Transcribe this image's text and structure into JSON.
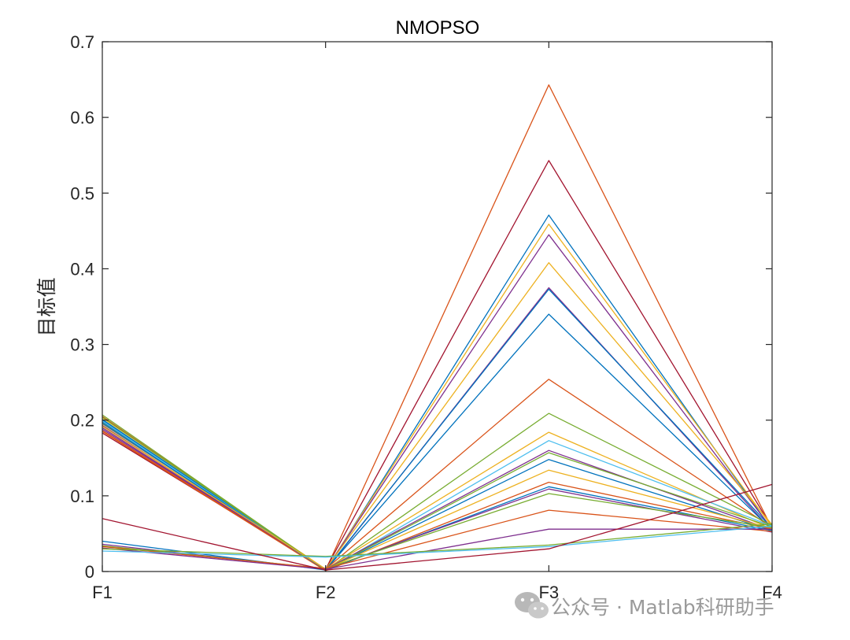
{
  "chart_data": {
    "type": "line",
    "title": "NMOPSO",
    "xlabel": "",
    "ylabel": "目标值",
    "categories": [
      "F1",
      "F2",
      "F3",
      "F4"
    ],
    "ylim": [
      0,
      0.7
    ],
    "yticks": [
      0,
      0.1,
      0.2,
      0.3,
      0.4,
      0.5,
      0.6,
      0.7
    ],
    "ytick_labels": [
      "0",
      "0.1",
      "0.2",
      "0.3",
      "0.4",
      "0.5",
      "0.6",
      "0.7"
    ],
    "grid": false,
    "box": true,
    "series": [
      {
        "color": "#D95319",
        "values": [
          0.205,
          0.002,
          0.643,
          0.057
        ]
      },
      {
        "color": "#A2142F",
        "values": [
          0.183,
          0.003,
          0.543,
          0.058
        ]
      },
      {
        "color": "#0072BD",
        "values": [
          0.2,
          0.001,
          0.471,
          0.055
        ]
      },
      {
        "color": "#EDB120",
        "values": [
          0.197,
          0.002,
          0.459,
          0.059
        ]
      },
      {
        "color": "#7E2F8E",
        "values": [
          0.19,
          0.002,
          0.445,
          0.056
        ]
      },
      {
        "color": "#EDB120",
        "values": [
          0.203,
          0.003,
          0.408,
          0.062
        ]
      },
      {
        "color": "#7E2F8E",
        "values": [
          0.193,
          0.001,
          0.375,
          0.054
        ]
      },
      {
        "color": "#0072BD",
        "values": [
          0.198,
          0.002,
          0.373,
          0.057
        ]
      },
      {
        "color": "#0072BD",
        "values": [
          0.201,
          0.002,
          0.34,
          0.055
        ]
      },
      {
        "color": "#D95319",
        "values": [
          0.186,
          0.003,
          0.254,
          0.058
        ]
      },
      {
        "color": "#77AC30",
        "values": [
          0.207,
          0.002,
          0.209,
          0.061
        ]
      },
      {
        "color": "#EDB120",
        "values": [
          0.195,
          0.003,
          0.184,
          0.056
        ]
      },
      {
        "color": "#4DBEEE",
        "values": [
          0.199,
          0.001,
          0.173,
          0.06
        ]
      },
      {
        "color": "#7E2F8E",
        "values": [
          0.188,
          0.003,
          0.16,
          0.055
        ]
      },
      {
        "color": "#77AC30",
        "values": [
          0.204,
          0.002,
          0.157,
          0.059
        ]
      },
      {
        "color": "#0072BD",
        "values": [
          0.196,
          0.002,
          0.148,
          0.054
        ]
      },
      {
        "color": "#EDB120",
        "values": [
          0.192,
          0.003,
          0.134,
          0.057
        ]
      },
      {
        "color": "#D95319",
        "values": [
          0.185,
          0.001,
          0.118,
          0.056
        ]
      },
      {
        "color": "#0072BD",
        "values": [
          0.04,
          0.002,
          0.112,
          0.054
        ]
      },
      {
        "color": "#7E2F8E",
        "values": [
          0.036,
          0.003,
          0.109,
          0.052
        ]
      },
      {
        "color": "#77AC30",
        "values": [
          0.034,
          0.004,
          0.103,
          0.058
        ]
      },
      {
        "color": "#D95319",
        "values": [
          0.033,
          0.004,
          0.081,
          0.053
        ]
      },
      {
        "color": "#7E2F8E",
        "values": [
          0.031,
          0.003,
          0.056,
          0.056
        ]
      },
      {
        "color": "#77AC30",
        "values": [
          0.03,
          0.02,
          0.035,
          0.063
        ]
      },
      {
        "color": "#4DBEEE",
        "values": [
          0.027,
          0.019,
          0.033,
          0.06
        ]
      },
      {
        "color": "#A2142F",
        "values": [
          0.07,
          0.002,
          0.03,
          0.115
        ]
      }
    ]
  },
  "watermark": {
    "text": "公众号 · Matlab科研助手",
    "icon": "wechat-icon",
    "color": "#9a9a9a"
  }
}
